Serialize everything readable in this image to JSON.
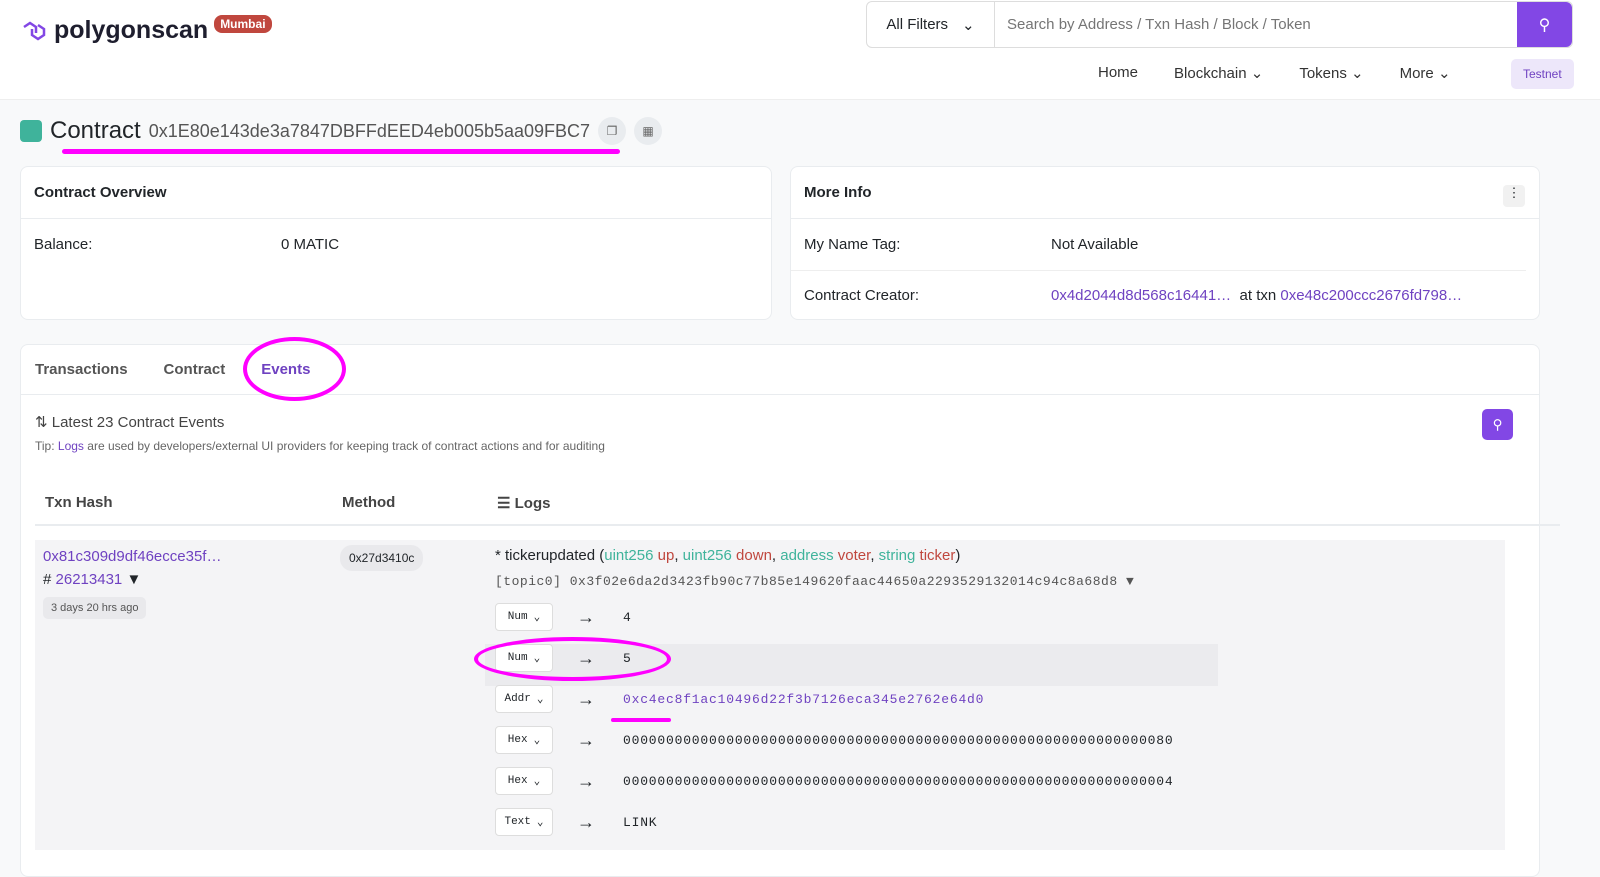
{
  "header": {
    "brand": "polygonscan",
    "network_badge": "Mumbai",
    "filter": "All Filters",
    "search_placeholder": "Search by Address / Txn Hash / Block / Token",
    "nav": [
      "Home",
      "Blockchain",
      "Tokens",
      "More"
    ],
    "testnet": "Testnet"
  },
  "contract": {
    "label": "Contract",
    "address": "0x1E80e143de3a7847DBFFdEED4eb005b5aa09FBC7"
  },
  "overview": {
    "title": "Contract Overview",
    "balance_label": "Balance:",
    "balance": "0 MATIC"
  },
  "more_info": {
    "title": "More Info",
    "name_tag_label": "My Name Tag:",
    "name_tag": "Not Available",
    "creator_label": "Contract Creator:",
    "creator": "0x4d2044d8d568c16441…",
    "at_txn": "at txn",
    "txn": "0xe48c200ccc2676fd798…"
  },
  "tabs": [
    "Transactions",
    "Contract",
    "Events"
  ],
  "events": {
    "heading": "Latest 23 Contract Events",
    "tip_prefix": "Tip:",
    "tip_link": "Logs",
    "tip_text": "are used by developers/external UI providers for keeping track of contract actions and for auditing",
    "columns": [
      "Txn Hash",
      "Method",
      "Logs"
    ],
    "row": {
      "hash": "0x81c309d9df46ecce35f…",
      "block_prefix": "#",
      "block": "26213431",
      "age": "3 days 20 hrs ago",
      "method": "0x27d3410c",
      "event_name": "* tickerupdated (",
      "params": [
        {
          "type": "uint256",
          "name": "up"
        },
        {
          "type": "uint256",
          "name": "down"
        },
        {
          "type": "address",
          "name": "voter"
        },
        {
          "type": "string",
          "name": "ticker"
        }
      ],
      "close": ")",
      "topic_label": "[topic0]",
      "topic": "0x3f02e6da2d3423fb90c77b85e149620faac44650a2293529132014c94c8a68d8",
      "data": [
        {
          "fmt": "Num",
          "value": "4"
        },
        {
          "fmt": "Num",
          "value": "5"
        },
        {
          "fmt": "Addr",
          "value": "0xc4ec8f1ac10496d22f3b7126eca345e2762e64d0"
        },
        {
          "fmt": "Hex",
          "value": "0000000000000000000000000000000000000000000000000000000000000080"
        },
        {
          "fmt": "Hex",
          "value": "0000000000000000000000000000000000000000000000000000000000000004"
        },
        {
          "fmt": "Text",
          "value": "LINK"
        }
      ]
    }
  }
}
